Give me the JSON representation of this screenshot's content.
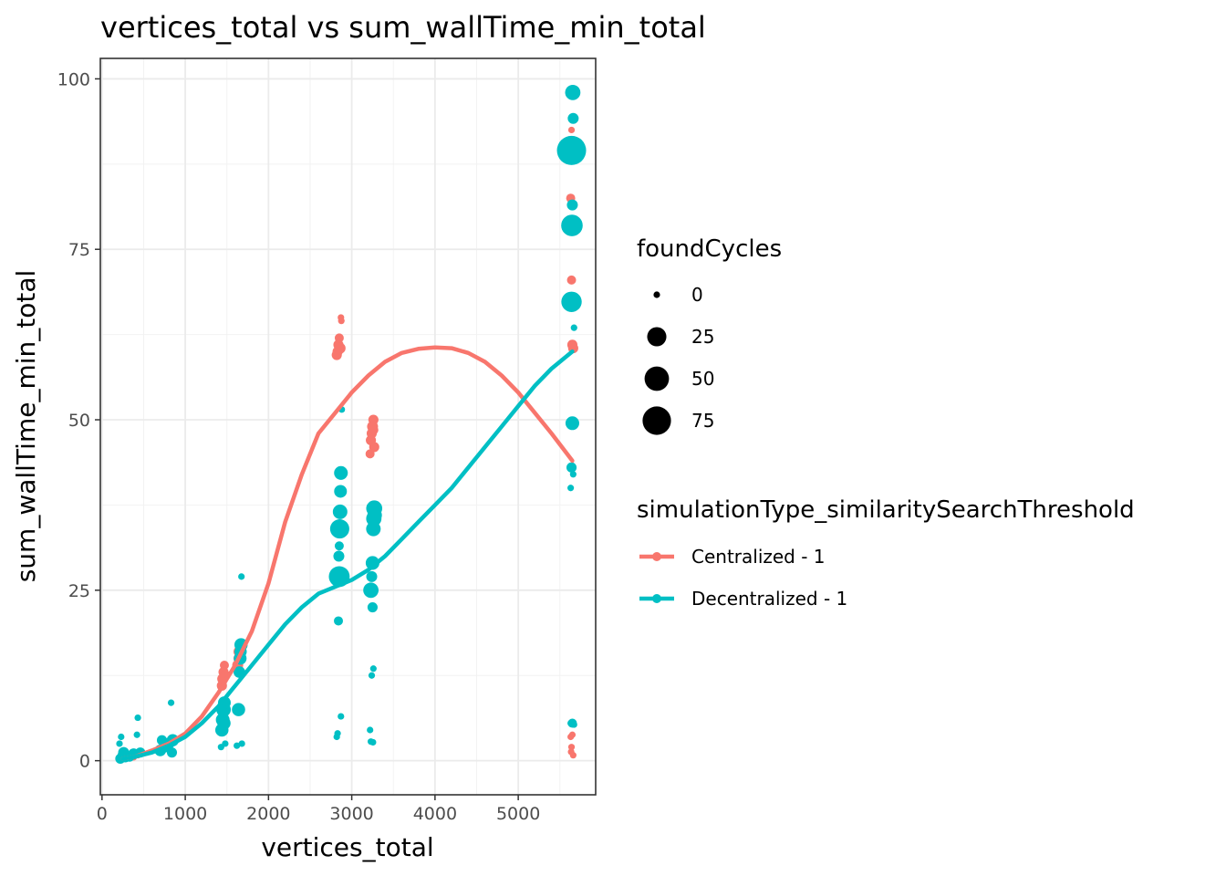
{
  "chart_data": {
    "type": "scatter",
    "title": "vertices_total  vs  sum_wallTime_min_total",
    "xlabel": "vertices_total",
    "ylabel": "sum_wallTime_min_total",
    "xlim": [
      -20,
      5930
    ],
    "ylim": [
      -5,
      103
    ],
    "x_ticks": [
      0,
      1000,
      2000,
      3000,
      4000,
      5000
    ],
    "x_tick_labels": [
      "0",
      "1000",
      "2000",
      "3000",
      "4000",
      "5000"
    ],
    "y_ticks": [
      0,
      25,
      50,
      75,
      100
    ],
    "y_tick_labels": [
      "0",
      "25",
      "50",
      "75",
      "100"
    ],
    "grid": true,
    "size_legend": {
      "title": "foundCycles",
      "entries": [
        {
          "label": "0",
          "value": 0
        },
        {
          "label": "25",
          "value": 25
        },
        {
          "label": "50",
          "value": 50
        },
        {
          "label": "75",
          "value": 75
        }
      ]
    },
    "color_legend": {
      "title": "simulationType_similaritySearchThreshold",
      "placement": "right"
    },
    "series": [
      {
        "name": "Centralized - 1",
        "color": "#F8766D",
        "points": [
          [
            230,
            0.2,
            0
          ],
          [
            280,
            0.4,
            0
          ],
          [
            330,
            0.6,
            0
          ],
          [
            380,
            0.5,
            0
          ],
          [
            430,
            0.8,
            0
          ],
          [
            700,
            1.5,
            0
          ],
          [
            760,
            2.0,
            0
          ],
          [
            820,
            2.5,
            0
          ],
          [
            850,
            3.0,
            0
          ],
          [
            1440,
            11,
            2
          ],
          [
            1450,
            12,
            3
          ],
          [
            1460,
            13,
            2
          ],
          [
            1470,
            14,
            1
          ],
          [
            1480,
            12.5,
            2
          ],
          [
            1630,
            14,
            3
          ],
          [
            1640,
            15,
            2
          ],
          [
            1650,
            16,
            4
          ],
          [
            1660,
            13,
            2
          ],
          [
            1670,
            17,
            3
          ],
          [
            2820,
            59.5,
            2
          ],
          [
            2830,
            60,
            2
          ],
          [
            2840,
            61,
            2
          ],
          [
            2850,
            62,
            1
          ],
          [
            2860,
            60.5,
            3
          ],
          [
            2870,
            65,
            0
          ],
          [
            2875,
            64.5,
            0
          ],
          [
            3220,
            45,
            1
          ],
          [
            3230,
            47,
            2
          ],
          [
            3240,
            48,
            2
          ],
          [
            3250,
            49,
            3
          ],
          [
            3260,
            50,
            2
          ],
          [
            3270,
            46,
            2
          ],
          [
            3265,
            48.5,
            1
          ],
          [
            5630,
            82.5,
            1
          ],
          [
            5640,
            70.5,
            1
          ],
          [
            5650,
            61,
            2
          ],
          [
            5660,
            60.5,
            2
          ],
          [
            5640,
            92.5,
            0
          ],
          [
            5630,
            3.5,
            0
          ],
          [
            5650,
            3.8,
            0
          ],
          [
            5640,
            2.0,
            0
          ],
          [
            5635,
            1.3,
            0
          ],
          [
            5660,
            0.8,
            0
          ]
        ],
        "smooth": [
          [
            250,
            0.3
          ],
          [
            400,
            0.6
          ],
          [
            600,
            1.5
          ],
          [
            800,
            2.5
          ],
          [
            1000,
            4.0
          ],
          [
            1200,
            6.5
          ],
          [
            1400,
            10
          ],
          [
            1600,
            14
          ],
          [
            1800,
            19
          ],
          [
            2000,
            26
          ],
          [
            2200,
            35
          ],
          [
            2400,
            42
          ],
          [
            2600,
            48
          ],
          [
            2800,
            51
          ],
          [
            3000,
            54
          ],
          [
            3200,
            56.5
          ],
          [
            3400,
            58.5
          ],
          [
            3600,
            59.8
          ],
          [
            3800,
            60.4
          ],
          [
            4000,
            60.6
          ],
          [
            4200,
            60.5
          ],
          [
            4400,
            59.8
          ],
          [
            4600,
            58.5
          ],
          [
            4800,
            56.5
          ],
          [
            5000,
            54
          ],
          [
            5200,
            51
          ],
          [
            5400,
            48
          ],
          [
            5650,
            44
          ]
        ]
      },
      {
        "name": "Decentralized - 1",
        "color": "#00BFC4",
        "points": [
          [
            220,
            0.3,
            2
          ],
          [
            240,
            0.8,
            1
          ],
          [
            260,
            1.2,
            3
          ],
          [
            230,
            3.5,
            0
          ],
          [
            210,
            2.5,
            0
          ],
          [
            280,
            0.5,
            2
          ],
          [
            330,
            0.6,
            2
          ],
          [
            380,
            1.0,
            3
          ],
          [
            420,
            3.8,
            0
          ],
          [
            430,
            6.3,
            0
          ],
          [
            460,
            1.2,
            2
          ],
          [
            700,
            1.5,
            4
          ],
          [
            720,
            3.0,
            2
          ],
          [
            750,
            2.0,
            3
          ],
          [
            800,
            2.5,
            4
          ],
          [
            830,
            8.5,
            0
          ],
          [
            850,
            3.0,
            5
          ],
          [
            840,
            1.2,
            2
          ],
          [
            1430,
            2.0,
            0
          ],
          [
            1440,
            4.5,
            7
          ],
          [
            1450,
            6.0,
            8
          ],
          [
            1460,
            7.5,
            10
          ],
          [
            1470,
            8.5,
            6
          ],
          [
            1480,
            2.5,
            0
          ],
          [
            1465,
            5.5,
            7
          ],
          [
            1620,
            2.2,
            0
          ],
          [
            1640,
            7.5,
            7
          ],
          [
            1650,
            13,
            4
          ],
          [
            1660,
            15,
            6
          ],
          [
            1670,
            17,
            7
          ],
          [
            1665,
            16,
            5
          ],
          [
            1680,
            2.5,
            0
          ],
          [
            1675,
            27,
            0
          ],
          [
            2820,
            3.5,
            0
          ],
          [
            2830,
            4.0,
            0
          ],
          [
            2870,
            6.5,
            0
          ],
          [
            2840,
            20.5,
            1
          ],
          [
            2850,
            27,
            32
          ],
          [
            2855,
            34,
            25
          ],
          [
            2860,
            36.5,
            10
          ],
          [
            2865,
            39.5,
            6
          ],
          [
            2870,
            42.2,
            8
          ],
          [
            2845,
            30,
            3
          ],
          [
            2850,
            31.5,
            1
          ],
          [
            2880,
            51.5,
            0
          ],
          [
            3220,
            4.5,
            0
          ],
          [
            3230,
            2.8,
            0
          ],
          [
            3240,
            12.5,
            0
          ],
          [
            3260,
            13.5,
            0
          ],
          [
            3250,
            22.5,
            2
          ],
          [
            3230,
            25,
            12
          ],
          [
            3240,
            27,
            3
          ],
          [
            3250,
            29,
            8
          ],
          [
            3260,
            34,
            10
          ],
          [
            3265,
            35.5,
            12
          ],
          [
            3270,
            37,
            14
          ],
          [
            3275,
            36,
            10
          ],
          [
            3255,
            2.7,
            0
          ],
          [
            5630,
            40,
            0
          ],
          [
            5640,
            43,
            2
          ],
          [
            5650,
            49.5,
            8
          ],
          [
            5660,
            42,
            0
          ],
          [
            5670,
            63.5,
            0
          ],
          [
            5640,
            67.3,
            30
          ],
          [
            5645,
            78.5,
            35
          ],
          [
            5650,
            81.5,
            3
          ],
          [
            5640,
            89.5,
            80
          ],
          [
            5660,
            94.2,
            3
          ],
          [
            5655,
            98,
            12
          ],
          [
            5630,
            5.5,
            0
          ],
          [
            5650,
            5.5,
            1
          ],
          [
            5670,
            5.3,
            0
          ]
        ],
        "smooth": [
          [
            250,
            0.3
          ],
          [
            400,
            0.6
          ],
          [
            600,
            1.2
          ],
          [
            800,
            2.2
          ],
          [
            1000,
            3.5
          ],
          [
            1200,
            5.5
          ],
          [
            1400,
            8.0
          ],
          [
            1600,
            11
          ],
          [
            1800,
            14
          ],
          [
            2000,
            17
          ],
          [
            2200,
            20
          ],
          [
            2400,
            22.5
          ],
          [
            2600,
            24.5
          ],
          [
            2800,
            25.5
          ],
          [
            3000,
            26.5
          ],
          [
            3200,
            28
          ],
          [
            3400,
            30
          ],
          [
            3600,
            32.5
          ],
          [
            3800,
            35
          ],
          [
            4000,
            37.5
          ],
          [
            4200,
            40
          ],
          [
            4400,
            43
          ],
          [
            4600,
            46
          ],
          [
            4800,
            49
          ],
          [
            5000,
            52
          ],
          [
            5200,
            55
          ],
          [
            5400,
            57.5
          ],
          [
            5650,
            60
          ]
        ]
      }
    ]
  }
}
